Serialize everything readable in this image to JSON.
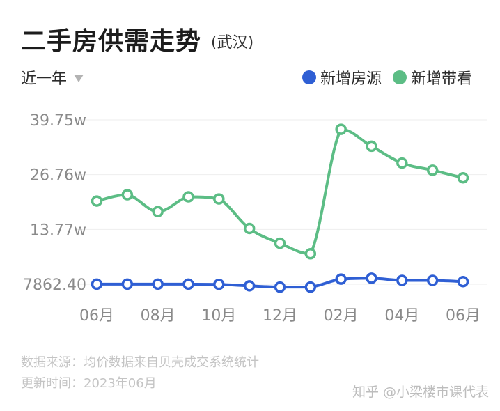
{
  "header": {
    "title": "二手房供需走势",
    "subtitle": "(武汉)"
  },
  "range_selector": {
    "selected": "近一年"
  },
  "legend": [
    {
      "label": "新增房源",
      "color": "#2f5fd4"
    },
    {
      "label": "新增带看",
      "color": "#5cbd85"
    }
  ],
  "chart_data": {
    "type": "line",
    "y_tick_labels": [
      "39.75w",
      "26.76w",
      "13.77w",
      "7862.40"
    ],
    "y_ticks": [
      397500,
      267600,
      137700,
      7862.4
    ],
    "ylim": [
      7862.4,
      397500
    ],
    "x_tick_labels": [
      "06月",
      "08月",
      "10月",
      "12月",
      "02月",
      "04月",
      "06月"
    ],
    "x": [
      "2022-06",
      "2022-07",
      "2022-08",
      "2022-09",
      "2022-10",
      "2022-11",
      "2022-12",
      "2023-01",
      "2023-02",
      "2023-03",
      "2023-04",
      "2023-05",
      "2023-06"
    ],
    "grid": true,
    "series": [
      {
        "name": "新增房源",
        "color": "#2f5fd4",
        "values": [
          8000,
          8000,
          8000,
          8000,
          7500,
          4000,
          1000,
          1000,
          20000,
          22000,
          17000,
          17000,
          14000
        ]
      },
      {
        "name": "新增带看",
        "color": "#5cbd85",
        "values": [
          205000,
          220000,
          180000,
          215000,
          210000,
          140000,
          105000,
          80000,
          375000,
          335000,
          295000,
          278000,
          260000
        ]
      }
    ]
  },
  "footer": {
    "source": "数据来源：均价数据来自贝壳成交系统统计",
    "updated": "更新时间：2023年06月",
    "watermark": "知乎 @小梁楼市课代表"
  }
}
